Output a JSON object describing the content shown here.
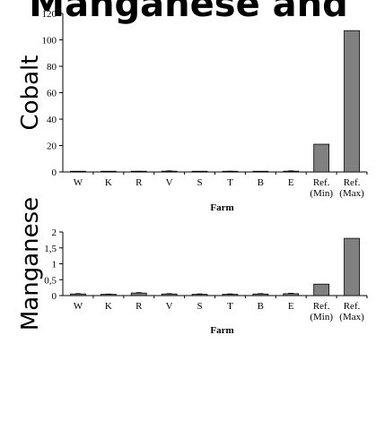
{
  "header": {
    "title": "Manganese and"
  },
  "chart_data": [
    {
      "type": "bar",
      "ylabel": "Cobalt",
      "xlabel": "Farm",
      "categories": [
        "W",
        "K",
        "R",
        "V",
        "S",
        "T",
        "B",
        "E",
        "Ref.\n(Min)",
        "Ref.\n(Max)"
      ],
      "values": [
        0.2,
        0.2,
        0.3,
        0.6,
        0.2,
        0.4,
        0.2,
        0.6,
        21,
        107
      ],
      "errors": [
        0.1,
        0.1,
        0.1,
        0.2,
        0.1,
        0.1,
        0.1,
        0.2,
        0,
        0
      ],
      "ylim": [
        0,
        120
      ],
      "yticks": [
        "0",
        "20",
        "40",
        "60",
        "80",
        "100",
        "120"
      ],
      "yticks_values": [
        0,
        20,
        40,
        60,
        80,
        100,
        120
      ],
      "bar_color": "#808080",
      "grid": false,
      "legend": "none"
    },
    {
      "type": "bar",
      "ylabel": "Manganese",
      "xlabel": "Farm",
      "categories": [
        "W",
        "K",
        "R",
        "V",
        "S",
        "T",
        "B",
        "E",
        "Ref.\n(Min)",
        "Ref.\n(Max)"
      ],
      "values": [
        0.05,
        0.04,
        0.08,
        0.05,
        0.04,
        0.04,
        0.05,
        0.06,
        0.36,
        1.8
      ],
      "errors": [
        0.01,
        0.005,
        0.012,
        0.01,
        0.01,
        0.01,
        0.01,
        0.01,
        0,
        0
      ],
      "ylim": [
        0,
        2
      ],
      "yticks": [
        "0",
        "0,5",
        "1",
        "1,5",
        "2"
      ],
      "yticks_values": [
        0,
        0.5,
        1,
        1.5,
        2
      ],
      "bar_color": "#808080",
      "grid": false,
      "legend": "none"
    }
  ]
}
